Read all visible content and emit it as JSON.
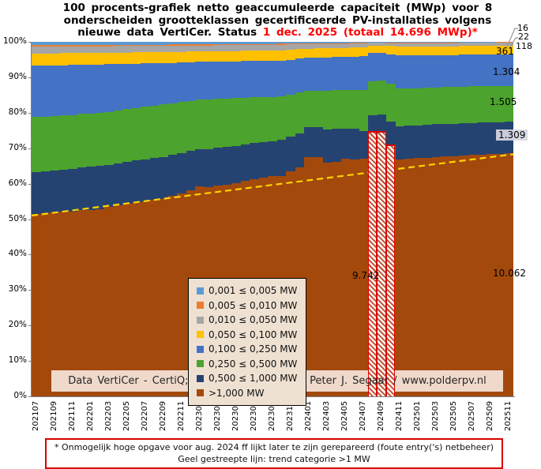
{
  "header": {
    "line1": "100 procents-grafiek netto geaccumuleerde capaciteit (MWp) voor 8",
    "line2": "onderscheiden grootteklassen gecertificeerde PV-installaties volgens",
    "line3_black": "nieuwe data VertiCer. Status ",
    "line3_red": "1 dec. 2025 (totaal 14.696 MWp)*",
    "accent_color": "#FF0000"
  },
  "copyright": {
    "text": "Data VertiCer - CertiQ; grafiek © 2023-2025 Peter J. Segaar / www.polderpv.nl",
    "background": "#EFD9CB"
  },
  "footnote": {
    "line1": "* Onmogelijk hoge opgave voor aug. 2024 ff lijkt later te zijn gerepareerd (foute entry('s) netbeheer)",
    "line2": "Geel gestreepte lijn: trend categorie >1 MW",
    "border_color": "#D90000"
  },
  "legend": {
    "background": "#EFE1D2"
  },
  "chart_data": {
    "type": "area",
    "subtype": "100-percent-stacked-monthly-columns",
    "title": "100 procents-grafiek netto geaccumuleerde capaciteit (MWp) voor 8 onderscheiden grootteklassen gecertificeerde PV-installaties volgens nieuwe data VertiCer. Status 1 dec. 2025 (totaal 14.696 MWp)*",
    "total_label": "14.696 MWp",
    "grid": false,
    "legend_position": "inside-left-center",
    "y_axis": {
      "min": 0,
      "max": 100,
      "ticks": [
        "0%",
        "10%",
        "20%",
        "30%",
        "40%",
        "50%",
        "60%",
        "70%",
        "80%",
        "90%",
        "100%"
      ]
    },
    "x": [
      "202107",
      "202108",
      "202109",
      "202110",
      "202111",
      "202112",
      "202201",
      "202202",
      "202203",
      "202204",
      "202205",
      "202206",
      "202207",
      "202208",
      "202209",
      "202210",
      "202211",
      "202212",
      "202301",
      "202302",
      "202303",
      "202304",
      "202305",
      "202306",
      "202307",
      "202308",
      "202309",
      "202310",
      "202311",
      "202312",
      "202401",
      "202402",
      "202403",
      "202404",
      "202405",
      "202406",
      "202407",
      "202408",
      "202409",
      "202410",
      "202411",
      "202412",
      "202501",
      "202502",
      "202503",
      "202504",
      "202505",
      "202506",
      "202507",
      "202508",
      "202509",
      "202510",
      "202511"
    ],
    "x_tick_labels": [
      "202107",
      "202109",
      "202111",
      "202201",
      "202203",
      "202205",
      "202207",
      "202209",
      "202211",
      "202301",
      "202303",
      "202305",
      "202307",
      "202309",
      "202311",
      "202401",
      "202403",
      "202405",
      "202407",
      "202409",
      "202411",
      "202501",
      "202503",
      "202505",
      "202507",
      "202509",
      "202511"
    ],
    "stack_note": "series listed top-to-bottom; values = percent share of monthly total",
    "series": [
      {
        "name": "0,001 ≤  0,005 MW",
        "color": "#5B9BD5",
        "values": [
          1.0,
          1.0,
          0.95,
          0.95,
          0.9,
          0.9,
          0.9,
          0.9,
          0.85,
          0.85,
          0.8,
          0.8,
          0.8,
          0.8,
          0.8,
          0.75,
          0.75,
          0.7,
          0.7,
          0.7,
          0.68,
          0.66,
          0.65,
          0.63,
          0.62,
          0.61,
          0.6,
          0.55,
          0.5,
          0.45,
          0.4,
          0.38,
          0.37,
          0.36,
          0.35,
          0.33,
          0.32,
          0.17,
          0.17,
          0.2,
          0.28,
          0.27,
          0.26,
          0.25,
          0.23,
          0.22,
          0.2,
          0.18,
          0.16,
          0.14,
          0.12,
          0.11,
          0.1
        ]
      },
      {
        "name": "0,005 ≤  0,010 MW",
        "color": "#ED7D31",
        "values": [
          0.4,
          0.4,
          0.4,
          0.4,
          0.39,
          0.39,
          0.39,
          0.38,
          0.38,
          0.37,
          0.37,
          0.36,
          0.36,
          0.35,
          0.35,
          0.34,
          0.34,
          0.33,
          0.33,
          0.32,
          0.32,
          0.31,
          0.31,
          0.3,
          0.3,
          0.3,
          0.3,
          0.29,
          0.28,
          0.27,
          0.25,
          0.24,
          0.23,
          0.22,
          0.21,
          0.2,
          0.18,
          0.13,
          0.13,
          0.15,
          0.17,
          0.17,
          0.17,
          0.16,
          0.16,
          0.16,
          0.16,
          0.15,
          0.15,
          0.15,
          0.15,
          0.15,
          0.15
        ]
      },
      {
        "name": "0,010 ≤  0,050 MW",
        "color": "#A6A6A6",
        "values": [
          1.9,
          1.9,
          1.9,
          1.85,
          1.85,
          1.8,
          1.8,
          1.8,
          1.82,
          1.84,
          1.85,
          1.85,
          1.85,
          1.85,
          1.85,
          1.82,
          1.78,
          1.72,
          1.68,
          1.66,
          1.65,
          1.64,
          1.63,
          1.62,
          1.61,
          1.6,
          1.6,
          1.55,
          1.45,
          1.35,
          1.25,
          1.22,
          1.2,
          1.18,
          1.15,
          1.12,
          1.1,
          0.8,
          0.8,
          0.85,
          0.95,
          0.94,
          0.93,
          0.92,
          0.9,
          0.88,
          0.87,
          0.85,
          0.84,
          0.83,
          0.82,
          0.81,
          0.8
        ]
      },
      {
        "name": "0,050 ≤  0,100 MW",
        "color": "#FFC000",
        "values": [
          3.4,
          3.4,
          3.4,
          3.4,
          3.4,
          3.38,
          3.36,
          3.35,
          3.3,
          3.25,
          3.2,
          3.15,
          3.1,
          3.05,
          3.0,
          3.0,
          2.98,
          2.95,
          2.92,
          2.9,
          2.9,
          2.9,
          2.9,
          2.9,
          2.9,
          2.9,
          2.9,
          2.85,
          2.8,
          2.7,
          2.6,
          2.58,
          2.56,
          2.54,
          2.52,
          2.51,
          2.5,
          2.1,
          2.1,
          2.3,
          2.5,
          2.5,
          2.49,
          2.48,
          2.48,
          2.47,
          2.47,
          2.46,
          2.46,
          2.46,
          2.45,
          2.45,
          2.45
        ]
      },
      {
        "name": "0,100 ≤  0,250 MW",
        "color": "#4472C4",
        "values": [
          14.5,
          14.4,
          14.3,
          14.2,
          14.1,
          13.9,
          13.8,
          13.7,
          13.4,
          13.1,
          12.8,
          12.5,
          12.2,
          11.9,
          11.7,
          11.4,
          11.1,
          10.9,
          10.7,
          10.6,
          10.5,
          10.45,
          10.4,
          10.3,
          10.25,
          10.2,
          10.2,
          10.1,
          9.9,
          9.6,
          9.3,
          9.3,
          9.35,
          9.4,
          9.4,
          9.4,
          9.4,
          7.9,
          7.8,
          8.4,
          9.3,
          9.25,
          9.2,
          9.15,
          9.1,
          9.05,
          9.0,
          9.0,
          8.95,
          8.95,
          8.9,
          8.9,
          8.9
        ]
      },
      {
        "name": "0,250 ≤  0,500 MW",
        "color": "#4CA32D",
        "values": [
          15.5,
          15.4,
          15.3,
          15.3,
          15.2,
          15.1,
          15.0,
          14.9,
          14.9,
          14.85,
          14.8,
          14.8,
          14.8,
          14.8,
          14.8,
          14.6,
          14.4,
          14.2,
          14.0,
          14.1,
          13.9,
          13.7,
          13.5,
          13.2,
          12.9,
          12.6,
          12.4,
          12.3,
          11.9,
          11.4,
          10.2,
          10.3,
          11.0,
          10.9,
          10.8,
          10.9,
          11.6,
          9.6,
          9.6,
          10.5,
          10.6,
          10.5,
          10.5,
          10.5,
          10.4,
          10.4,
          10.4,
          10.3,
          10.3,
          10.3,
          10.2,
          10.2,
          10.2
        ]
      },
      {
        "name": "0,500 ≤  1,000 MW",
        "color": "#254370",
        "values": [
          11.8,
          11.8,
          11.9,
          11.9,
          12.0,
          12.0,
          12.1,
          12.1,
          12.0,
          11.95,
          11.9,
          11.9,
          11.85,
          11.8,
          11.8,
          11.6,
          11.4,
          11.1,
          10.4,
          10.7,
          10.7,
          10.6,
          10.5,
          10.3,
          10.1,
          10.0,
          9.9,
          10.2,
          9.8,
          9.7,
          8.6,
          8.6,
          9.3,
          9.2,
          8.6,
          8.7,
          7.8,
          4.5,
          4.5,
          6.6,
          9.3,
          9.3,
          9.3,
          9.3,
          9.2,
          9.2,
          9.1,
          9.1,
          9.1,
          9.0,
          9.05,
          9.0,
          8.9
        ]
      },
      {
        "name": ">1,000 MW",
        "color": "#A3490B",
        "values": [
          51.5,
          51.7,
          51.85,
          52.0,
          52.16,
          52.53,
          52.65,
          52.87,
          53.35,
          53.79,
          54.28,
          54.64,
          55.04,
          55.45,
          55.7,
          56.49,
          57.25,
          58.1,
          59.27,
          59.02,
          59.35,
          59.74,
          60.11,
          60.75,
          61.32,
          61.79,
          62.1,
          62.16,
          63.37,
          64.53,
          67.4,
          67.38,
          65.99,
          66.2,
          66.97,
          66.84,
          67.1,
          74.8,
          74.9,
          71.0,
          66.9,
          67.07,
          67.15,
          67.24,
          67.53,
          67.62,
          67.8,
          67.96,
          68.04,
          68.17,
          68.31,
          68.38,
          68.5
        ]
      }
    ],
    "hatched_months": [
      "202408",
      "202409",
      "202410"
    ],
    "trend_line": {
      "label": "trend categorie >1 MW",
      "color": "#FFD400",
      "style": "dashed",
      "start_pct": 51.0,
      "end_pct": 68.3
    },
    "annotations": {
      "right_labels": [
        {
          "text": "16"
        },
        {
          "text": "22"
        },
        {
          "text": "118"
        },
        {
          "text": "361"
        },
        {
          "text": "1.304"
        },
        {
          "text": "1.505"
        },
        {
          "text": "1.309"
        },
        {
          "text": "10.062"
        }
      ],
      "anomaly_label": {
        "text": "9.742"
      }
    }
  }
}
